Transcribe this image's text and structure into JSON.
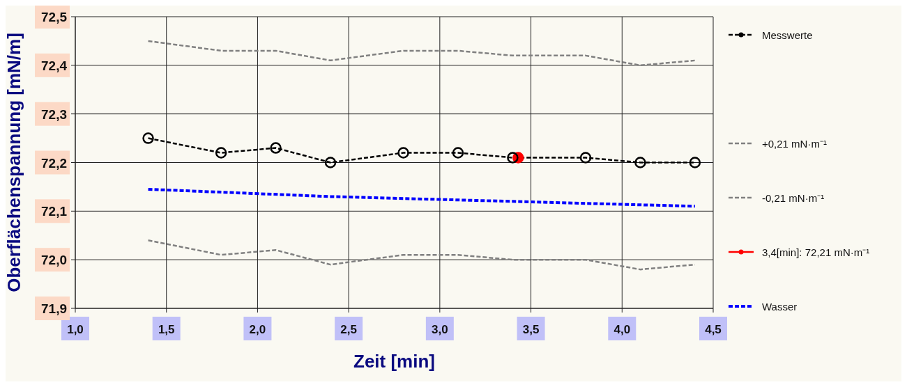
{
  "chart_data": {
    "type": "line",
    "xlabel": "Zeit [min]",
    "ylabel": "Oberflächenspannung [mN/m]",
    "xlim": [
      1.0,
      4.5
    ],
    "xticks": [
      {
        "value": 1.0,
        "label": "1,0"
      },
      {
        "value": 1.5,
        "label": "1,5"
      },
      {
        "value": 2.0,
        "label": "2,0"
      },
      {
        "value": 2.5,
        "label": "2,5"
      },
      {
        "value": 3.0,
        "label": "3,0"
      },
      {
        "value": 3.5,
        "label": "3,5"
      },
      {
        "value": 4.0,
        "label": "4,0"
      },
      {
        "value": 4.5,
        "label": "4,5"
      }
    ],
    "ylim": [
      71.9,
      72.5
    ],
    "yticks": [
      {
        "value": 71.9,
        "label": "71,9"
      },
      {
        "value": 72.0,
        "label": "72,0"
      },
      {
        "value": 72.1,
        "label": "72,1"
      },
      {
        "value": 72.2,
        "label": "72,2"
      },
      {
        "value": 72.3,
        "label": "72,3"
      },
      {
        "value": 72.4,
        "label": "72,4"
      },
      {
        "value": 72.5,
        "label": "72,5"
      }
    ],
    "grid": true,
    "legend": "right",
    "series": [
      {
        "name": "Messwerte",
        "color": "#000000",
        "line_style": "dashed",
        "marker": "circle",
        "x": [
          1.4,
          1.8,
          2.1,
          2.4,
          2.8,
          3.1,
          3.4,
          3.8,
          4.1,
          4.4
        ],
        "values": [
          72.25,
          72.22,
          72.23,
          72.2,
          72.22,
          72.22,
          72.21,
          72.21,
          72.2,
          72.2
        ]
      },
      {
        "name": "+0,21 mN·m⁻¹",
        "color": "#808080",
        "line_style": "dashed",
        "marker": "none",
        "x": [
          1.4,
          1.8,
          2.1,
          2.4,
          2.8,
          3.1,
          3.4,
          3.8,
          4.1,
          4.4
        ],
        "values": [
          72.45,
          72.43,
          72.43,
          72.41,
          72.43,
          72.43,
          72.42,
          72.42,
          72.4,
          72.41
        ]
      },
      {
        "name": "-0,21 mN·m⁻¹",
        "color": "#808080",
        "line_style": "dashed",
        "marker": "none",
        "x": [
          1.4,
          1.8,
          2.1,
          2.4,
          2.8,
          3.1,
          3.4,
          3.8,
          4.1,
          4.4
        ],
        "values": [
          72.04,
          72.01,
          72.02,
          71.99,
          72.01,
          72.01,
          72.0,
          72.0,
          71.98,
          71.99
        ]
      },
      {
        "name": "3,4[min]: 72,21 mN·m⁻¹",
        "color": "#ff0000",
        "line_style": "solid",
        "marker": "circle",
        "x": [
          3.43
        ],
        "values": [
          72.21
        ]
      },
      {
        "name": "Wasser",
        "color": "#0000ff",
        "line_style": "dashed",
        "marker": "none",
        "x": [
          1.4,
          2.4,
          3.4,
          4.4
        ],
        "values": [
          72.145,
          72.13,
          72.12,
          72.11
        ]
      }
    ]
  }
}
